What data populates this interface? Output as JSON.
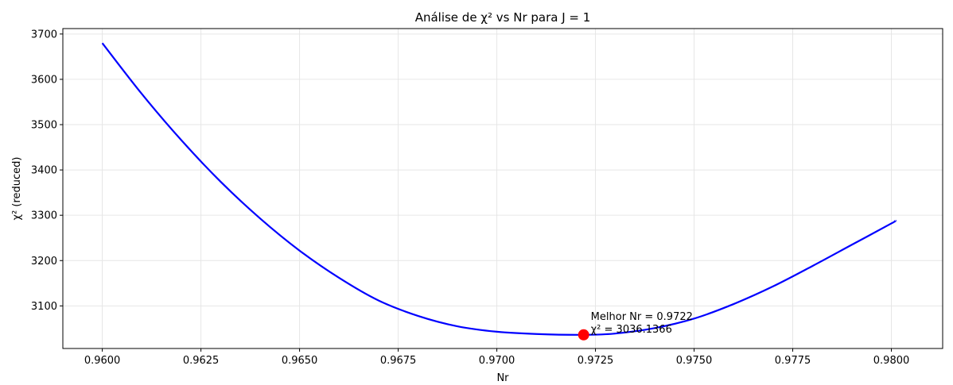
{
  "chart_data": {
    "type": "line",
    "title": "Análise de χ² vs Nr para J = 1",
    "xlabel": "Nr",
    "ylabel": "χ² (reduced)",
    "xlim": [
      0.959,
      0.9813
    ],
    "ylim": [
      3006,
      3712
    ],
    "grid": true,
    "x_ticks": [
      0.96,
      0.9625,
      0.965,
      0.9675,
      0.97,
      0.9725,
      0.975,
      0.9775,
      0.98
    ],
    "x_tick_labels": [
      "0.9600",
      "0.9625",
      "0.9650",
      "0.9675",
      "0.9700",
      "0.9725",
      "0.9750",
      "0.9775",
      "0.9800"
    ],
    "y_ticks": [
      3100,
      3200,
      3300,
      3400,
      3500,
      3600,
      3700
    ],
    "y_tick_labels": [
      "3100",
      "3200",
      "3300",
      "3400",
      "3500",
      "3600",
      "3700"
    ],
    "series": [
      {
        "name": "χ²",
        "color": "#0000ff",
        "x": [
          0.96,
          0.961,
          0.962,
          0.963,
          0.964,
          0.965,
          0.966,
          0.967,
          0.968,
          0.969,
          0.97,
          0.971,
          0.9722,
          0.973,
          0.974,
          0.975,
          0.976,
          0.977,
          0.978,
          0.979,
          0.98,
          0.9801
        ],
        "values": [
          3680,
          3568,
          3466,
          3374,
          3293,
          3222,
          3162,
          3112,
          3078,
          3055,
          3043,
          3038,
          3036.14,
          3039,
          3051,
          3072,
          3104,
          3143,
          3188,
          3235,
          3282,
          3288
        ]
      }
    ],
    "best_point": {
      "x": 0.9722,
      "y": 3036.1366,
      "color": "#ff0000"
    },
    "annotation": {
      "line1": "Melhor Nr = 0.9722",
      "line2": "χ² = 3036.1366"
    }
  }
}
